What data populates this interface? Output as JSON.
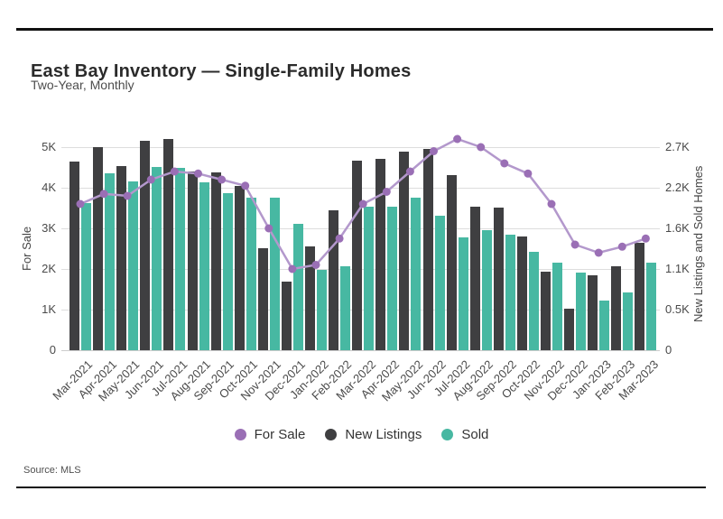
{
  "header": {
    "title": "East Bay Inventory — Single-Family Homes",
    "subtitle": "Two-Year, Monthly"
  },
  "source": {
    "label": "Source: MLS"
  },
  "chart_data": {
    "type": "bar",
    "subtype": "grouped-bars-with-line-overlay",
    "categories": [
      "Mar-2021",
      "Apr-2021",
      "May-2021",
      "Jun-2021",
      "Jul-2021",
      "Aug-2021",
      "Sep-2021",
      "Oct-2021",
      "Nov-2021",
      "Dec-2021",
      "Jan-2022",
      "Feb-2022",
      "Mar-2022",
      "Apr-2022",
      "May-2022",
      "Jun-2022",
      "Jul-2022",
      "Aug-2022",
      "Sep-2022",
      "Oct-2022",
      "Nov-2022",
      "Dec-2022",
      "Jan-2023",
      "Feb-2023",
      "Mar-2023"
    ],
    "series": [
      {
        "name": "For Sale",
        "type": "line",
        "axis": "left",
        "marker_color": "#9a6fb5",
        "line_color": "#b398cc",
        "values": [
          3600,
          3850,
          3800,
          4200,
          4400,
          4350,
          4200,
          4050,
          3000,
          2000,
          2100,
          2750,
          3600,
          3900,
          4400,
          4900,
          5200,
          5000,
          4600,
          4350,
          3600,
          2600,
          2400,
          2550,
          2750
        ]
      },
      {
        "name": "New Listings",
        "type": "bar",
        "axis": "right",
        "color": "#3f3f41",
        "values": [
          2530,
          2730,
          2470,
          2810,
          2840,
          2400,
          2380,
          2200,
          1370,
          920,
          1390,
          1880,
          2540,
          2570,
          2660,
          2700,
          2350,
          1930,
          1910,
          1520,
          1050,
          560,
          1000,
          1130,
          1440
        ]
      },
      {
        "name": "Sold",
        "type": "bar",
        "axis": "right",
        "color": "#47b8a2",
        "values": [
          1970,
          2370,
          2260,
          2460,
          2450,
          2250,
          2110,
          2050,
          2050,
          1690,
          1080,
          1130,
          1920,
          1920,
          2050,
          1800,
          1510,
          1610,
          1550,
          1320,
          1170,
          1040,
          670,
          780,
          1170
        ]
      }
    ],
    "left_axis": {
      "title": "For Sale",
      "range": [
        0,
        5000
      ],
      "tick_labels": [
        "0",
        "1K",
        "2K",
        "3K",
        "4K",
        "5K"
      ]
    },
    "right_axis": {
      "title": "New Listings and Sold Homes",
      "range": [
        0,
        2725
      ],
      "tick_labels": [
        "0",
        "0.5K",
        "1.1K",
        "1.6K",
        "2.2K",
        "2.7K"
      ]
    },
    "legend": [
      {
        "label": "For Sale",
        "color": "#9a6fb5"
      },
      {
        "label": "New Listings",
        "color": "#3f3f41"
      },
      {
        "label": "Sold",
        "color": "#47b8a2"
      }
    ],
    "grid": "horizontal",
    "legend_position": "bottom-center"
  }
}
